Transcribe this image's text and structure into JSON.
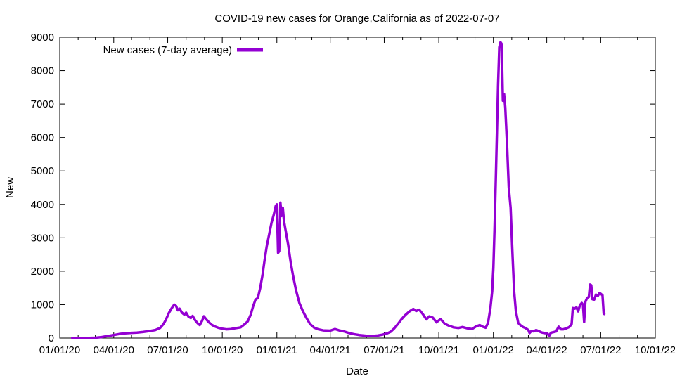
{
  "chart": {
    "title": "COVID-19 new cases for Orange,California as of 2022-07-07",
    "xlabel": "Date",
    "ylabel": "New",
    "legend_label": "New cases (7-day average)",
    "line_color": "#9400d3",
    "background_color": "#ffffff",
    "axis_color": "#000000"
  },
  "chart_data": {
    "type": "line",
    "title": "COVID-19 new cases for Orange,California as of 2022-07-07",
    "xlabel": "Date",
    "ylabel": "New",
    "grid": false,
    "legend": {
      "label": "New cases (7-day average)",
      "position": "top-left"
    },
    "x_range": [
      "2020-01-01",
      "2022-10-01"
    ],
    "ylim": [
      0,
      9000
    ],
    "y_tick_step": 1000,
    "y_tick_labels": [
      "0",
      "1000",
      "2000",
      "3000",
      "4000",
      "5000",
      "6000",
      "7000",
      "8000",
      "9000"
    ],
    "x_tick_labels": [
      "01/01/20",
      "04/01/20",
      "07/01/20",
      "10/01/20",
      "01/01/21",
      "04/01/21",
      "07/01/21",
      "10/01/21",
      "01/01/22",
      "04/01/22",
      "07/01/22",
      "10/01/22"
    ],
    "x_tick_dates": [
      "2020-01-01",
      "2020-04-01",
      "2020-07-01",
      "2020-10-01",
      "2021-01-01",
      "2021-04-01",
      "2021-07-01",
      "2021-10-01",
      "2022-01-01",
      "2022-04-01",
      "2022-07-01",
      "2022-10-01"
    ],
    "minor_x_ticks": "monthly",
    "series": [
      {
        "name": "New cases (7-day average)",
        "color": "#9400d3",
        "points": [
          [
            "2020-01-22",
            2
          ],
          [
            "2020-02-05",
            3
          ],
          [
            "2020-02-20",
            5
          ],
          [
            "2020-03-01",
            10
          ],
          [
            "2020-03-10",
            25
          ],
          [
            "2020-03-20",
            55
          ],
          [
            "2020-04-01",
            90
          ],
          [
            "2020-04-10",
            120
          ],
          [
            "2020-04-20",
            140
          ],
          [
            "2020-05-01",
            155
          ],
          [
            "2020-05-10",
            165
          ],
          [
            "2020-05-20",
            180
          ],
          [
            "2020-06-01",
            210
          ],
          [
            "2020-06-10",
            240
          ],
          [
            "2020-06-18",
            300
          ],
          [
            "2020-06-24",
            420
          ],
          [
            "2020-06-28",
            550
          ],
          [
            "2020-07-03",
            750
          ],
          [
            "2020-07-08",
            900
          ],
          [
            "2020-07-12",
            1000
          ],
          [
            "2020-07-15",
            960
          ],
          [
            "2020-07-18",
            830
          ],
          [
            "2020-07-21",
            880
          ],
          [
            "2020-07-25",
            760
          ],
          [
            "2020-07-29",
            700
          ],
          [
            "2020-08-01",
            760
          ],
          [
            "2020-08-05",
            640
          ],
          [
            "2020-08-09",
            600
          ],
          [
            "2020-08-12",
            660
          ],
          [
            "2020-08-16",
            540
          ],
          [
            "2020-08-20",
            450
          ],
          [
            "2020-08-24",
            390
          ],
          [
            "2020-08-28",
            520
          ],
          [
            "2020-08-31",
            650
          ],
          [
            "2020-09-04",
            560
          ],
          [
            "2020-09-08",
            480
          ],
          [
            "2020-09-13",
            400
          ],
          [
            "2020-09-18",
            350
          ],
          [
            "2020-09-24",
            310
          ],
          [
            "2020-10-01",
            280
          ],
          [
            "2020-10-08",
            260
          ],
          [
            "2020-10-15",
            270
          ],
          [
            "2020-10-22",
            290
          ],
          [
            "2020-11-01",
            320
          ],
          [
            "2020-11-08",
            420
          ],
          [
            "2020-11-13",
            500
          ],
          [
            "2020-11-18",
            700
          ],
          [
            "2020-11-22",
            950
          ],
          [
            "2020-11-26",
            1150
          ],
          [
            "2020-11-30",
            1200
          ],
          [
            "2020-12-04",
            1500
          ],
          [
            "2020-12-08",
            1900
          ],
          [
            "2020-12-11",
            2300
          ],
          [
            "2020-12-15",
            2750
          ],
          [
            "2020-12-19",
            3100
          ],
          [
            "2020-12-23",
            3450
          ],
          [
            "2020-12-27",
            3700
          ],
          [
            "2020-12-30",
            3950
          ],
          [
            "2021-01-01",
            4000
          ],
          [
            "2021-01-03",
            2550
          ],
          [
            "2021-01-05",
            2600
          ],
          [
            "2021-01-07",
            4050
          ],
          [
            "2021-01-09",
            3650
          ],
          [
            "2021-01-11",
            3900
          ],
          [
            "2021-01-13",
            3500
          ],
          [
            "2021-01-16",
            3200
          ],
          [
            "2021-01-20",
            2800
          ],
          [
            "2021-01-24",
            2300
          ],
          [
            "2021-01-28",
            1900
          ],
          [
            "2021-02-02",
            1450
          ],
          [
            "2021-02-08",
            1050
          ],
          [
            "2021-02-14",
            800
          ],
          [
            "2021-02-20",
            600
          ],
          [
            "2021-02-26",
            420
          ],
          [
            "2021-03-05",
            310
          ],
          [
            "2021-03-12",
            260
          ],
          [
            "2021-03-20",
            230
          ],
          [
            "2021-04-01",
            220
          ],
          [
            "2021-04-09",
            270
          ],
          [
            "2021-04-16",
            230
          ],
          [
            "2021-04-24",
            200
          ],
          [
            "2021-05-01",
            160
          ],
          [
            "2021-05-10",
            120
          ],
          [
            "2021-05-20",
            90
          ],
          [
            "2021-06-01",
            70
          ],
          [
            "2021-06-10",
            60
          ],
          [
            "2021-06-20",
            75
          ],
          [
            "2021-06-28",
            100
          ],
          [
            "2021-07-06",
            140
          ],
          [
            "2021-07-12",
            190
          ],
          [
            "2021-07-18",
            290
          ],
          [
            "2021-07-24",
            420
          ],
          [
            "2021-07-30",
            560
          ],
          [
            "2021-08-05",
            680
          ],
          [
            "2021-08-12",
            790
          ],
          [
            "2021-08-19",
            870
          ],
          [
            "2021-08-24",
            810
          ],
          [
            "2021-08-29",
            850
          ],
          [
            "2021-09-04",
            720
          ],
          [
            "2021-09-10",
            560
          ],
          [
            "2021-09-15",
            650
          ],
          [
            "2021-09-21",
            610
          ],
          [
            "2021-09-27",
            470
          ],
          [
            "2021-10-04",
            570
          ],
          [
            "2021-10-11",
            430
          ],
          [
            "2021-10-18",
            370
          ],
          [
            "2021-10-26",
            320
          ],
          [
            "2021-11-03",
            300
          ],
          [
            "2021-11-10",
            330
          ],
          [
            "2021-11-18",
            290
          ],
          [
            "2021-11-26",
            270
          ],
          [
            "2021-12-03",
            350
          ],
          [
            "2021-12-09",
            390
          ],
          [
            "2021-12-14",
            340
          ],
          [
            "2021-12-19",
            310
          ],
          [
            "2021-12-23",
            450
          ],
          [
            "2021-12-27",
            900
          ],
          [
            "2021-12-30",
            1400
          ],
          [
            "2022-01-01",
            2100
          ],
          [
            "2022-01-03",
            3300
          ],
          [
            "2022-01-05",
            4700
          ],
          [
            "2022-01-07",
            6200
          ],
          [
            "2022-01-09",
            7600
          ],
          [
            "2022-01-11",
            8700
          ],
          [
            "2022-01-13",
            8850
          ],
          [
            "2022-01-15",
            8800
          ],
          [
            "2022-01-17",
            7100
          ],
          [
            "2022-01-19",
            7300
          ],
          [
            "2022-01-21",
            6900
          ],
          [
            "2022-01-24",
            5800
          ],
          [
            "2022-01-27",
            4500
          ],
          [
            "2022-01-30",
            3900
          ],
          [
            "2022-02-02",
            2600
          ],
          [
            "2022-02-05",
            1400
          ],
          [
            "2022-02-08",
            800
          ],
          [
            "2022-02-12",
            450
          ],
          [
            "2022-02-16",
            380
          ],
          [
            "2022-02-20",
            330
          ],
          [
            "2022-02-24",
            300
          ],
          [
            "2022-03-01",
            240
          ],
          [
            "2022-03-03",
            150
          ],
          [
            "2022-03-06",
            210
          ],
          [
            "2022-03-10",
            200
          ],
          [
            "2022-03-14",
            240
          ],
          [
            "2022-03-18",
            210
          ],
          [
            "2022-03-23",
            170
          ],
          [
            "2022-03-28",
            150
          ],
          [
            "2022-04-02",
            140
          ],
          [
            "2022-04-05",
            60
          ],
          [
            "2022-04-08",
            160
          ],
          [
            "2022-04-13",
            180
          ],
          [
            "2022-04-17",
            200
          ],
          [
            "2022-04-21",
            340
          ],
          [
            "2022-04-25",
            260
          ],
          [
            "2022-04-29",
            260
          ],
          [
            "2022-05-04",
            290
          ],
          [
            "2022-05-09",
            330
          ],
          [
            "2022-05-13",
            420
          ],
          [
            "2022-05-15",
            900
          ],
          [
            "2022-05-18",
            880
          ],
          [
            "2022-05-21",
            920
          ],
          [
            "2022-05-24",
            800
          ],
          [
            "2022-05-27",
            990
          ],
          [
            "2022-05-30",
            1050
          ],
          [
            "2022-06-01",
            1000
          ],
          [
            "2022-06-03",
            480
          ],
          [
            "2022-06-05",
            1080
          ],
          [
            "2022-06-08",
            1200
          ],
          [
            "2022-06-11",
            1230
          ],
          [
            "2022-06-13",
            1600
          ],
          [
            "2022-06-15",
            1580
          ],
          [
            "2022-06-17",
            1160
          ],
          [
            "2022-06-20",
            1150
          ],
          [
            "2022-06-23",
            1300
          ],
          [
            "2022-06-26",
            1260
          ],
          [
            "2022-06-29",
            1350
          ],
          [
            "2022-07-02",
            1310
          ],
          [
            "2022-07-04",
            1280
          ],
          [
            "2022-07-06",
            730
          ],
          [
            "2022-07-07",
            720
          ]
        ]
      }
    ]
  }
}
